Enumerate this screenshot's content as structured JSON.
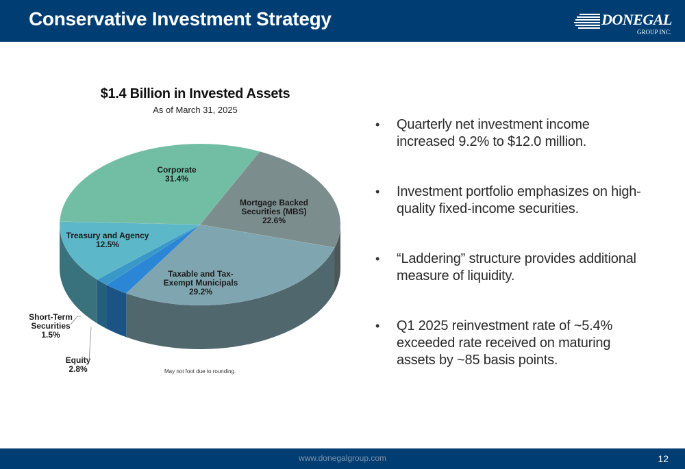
{
  "header": {
    "title": "Conservative Investment Strategy",
    "logo_text": "DONEGAL",
    "logo_sub": "GROUP INC.",
    "color": "#003d73"
  },
  "chart_data": {
    "type": "pie",
    "title": "$1.4 Billion in Invested Assets",
    "subtitle": "As of March 31, 2025",
    "slices": [
      {
        "label": "Mortgage Backed Securities (MBS)",
        "value": 22.6,
        "value_label": "22.6%",
        "color": "#7c8d8e"
      },
      {
        "label": "Taxable and Tax-Exempt Municipals",
        "value": 29.2,
        "value_label": "29.2%",
        "color": "#7fa6b0"
      },
      {
        "label": "Equity",
        "value": 2.8,
        "value_label": "2.8%",
        "color": "#2b86d6"
      },
      {
        "label": "Short-Term Securities",
        "value": 1.5,
        "value_label": "1.5%",
        "color": "#3a98c9"
      },
      {
        "label": "Treasury and Agency",
        "value": 12.5,
        "value_label": "12.5%",
        "color": "#5cb8c8"
      },
      {
        "label": "Corporate",
        "value": 31.4,
        "value_label": "31.4%",
        "color": "#72bea4"
      }
    ],
    "footnote": "May not foot due to rounding."
  },
  "bullets": [
    "Quarterly net investment income increased 9.2% to $12.0 million.",
    "Investment portfolio emphasizes on high-quality fixed-income securities.",
    "“Laddering” structure provides additional measure of liquidity.",
    "Q1 2025 reinvestment rate of ~5.4% exceeded rate received on maturing assets by ~85 basis points."
  ],
  "footer": {
    "url": "www.donegalgroup.com",
    "page": "12"
  }
}
